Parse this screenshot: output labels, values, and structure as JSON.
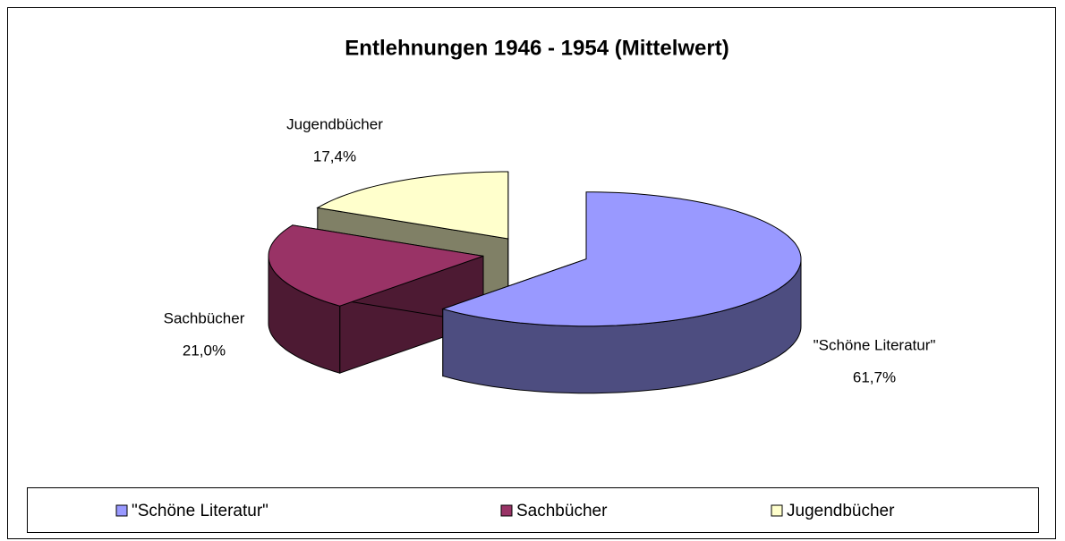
{
  "chart_data": {
    "type": "pie3d",
    "title": "Entlehnungen 1946 - 1954 (Mittelwert)",
    "categories": [
      "\"Schöne Literatur\"",
      "Sachbücher",
      "Jugendbücher"
    ],
    "values": [
      61.7,
      21.0,
      17.4
    ],
    "value_labels": [
      "61,7%",
      "21,0%",
      "17,4%"
    ],
    "colors": [
      "#9999ff",
      "#993366",
      "#ffffcc"
    ],
    "annotation": "\"",
    "legend": "bottom"
  }
}
